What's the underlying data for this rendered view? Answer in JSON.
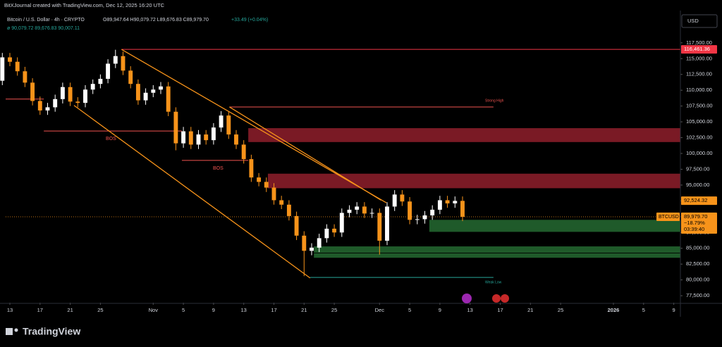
{
  "header": {
    "credit": "BitXJournal created with TradingView.com, Dec 12, 2025 16:20 UTC",
    "logo": "TradingView",
    "currency": "USD"
  },
  "chart_data": {
    "type": "candlestick",
    "title": "Bitcoin / U.S. Dollar · 4h · CRYPTO",
    "ohlc": "O89,947.64 H90,079.72 L89,676.83 C89,979.70",
    "change": "+33.49 (+0.04%)",
    "indicator": "ø 90,079.72 89,676.83 90,007.11",
    "x": [
      -1,
      0,
      1,
      2,
      3,
      4,
      5,
      6,
      7,
      8,
      9,
      10,
      11,
      12,
      13,
      14,
      15,
      16,
      17,
      18,
      19,
      20,
      21,
      22,
      23,
      24,
      25,
      26,
      27,
      28,
      29,
      30,
      31,
      32,
      33,
      34,
      35,
      36,
      37,
      38,
      39,
      40,
      41,
      42,
      43,
      44,
      45,
      46,
      47,
      48,
      49,
      50,
      51,
      52,
      53,
      54,
      55,
      56,
      57,
      58,
      59,
      60
    ],
    "open": [
      111500,
      115200,
      114500,
      113000,
      111200,
      108300,
      106800,
      107300,
      108600,
      110500,
      108200,
      108000,
      110100,
      111000,
      111800,
      114200,
      115400,
      113100,
      111000,
      108400,
      109600,
      110100,
      110600,
      106600,
      101600,
      103500,
      101400,
      103000,
      102100,
      104100,
      106000,
      103000,
      101400,
      99100,
      96200,
      95500,
      94600,
      92600,
      91900,
      90100,
      87000,
      84600,
      85100,
      86600,
      88100,
      87500,
      90600,
      91100,
      91600,
      90500,
      90600,
      86200,
      91600,
      93500,
      92400,
      89500,
      89600,
      90200,
      91100,
      92600,
      92100,
      92500
    ],
    "high": [
      115900,
      115900,
      115200,
      113700,
      111900,
      109000,
      108000,
      109300,
      111200,
      111200,
      108900,
      110800,
      111700,
      112500,
      114900,
      116400,
      116100,
      113800,
      111700,
      110300,
      110800,
      111300,
      111300,
      107300,
      104200,
      104200,
      103700,
      103700,
      104800,
      106700,
      106700,
      103700,
      102100,
      99800,
      96900,
      96200,
      95300,
      93300,
      92600,
      90800,
      87700,
      85800,
      87300,
      88800,
      88800,
      91300,
      91800,
      92300,
      92300,
      91300,
      91300,
      92300,
      94200,
      94200,
      93100,
      90300,
      90900,
      91800,
      93300,
      93300,
      93200,
      93200
    ],
    "low": [
      110800,
      113800,
      112300,
      110500,
      107600,
      106100,
      106100,
      106600,
      107900,
      107500,
      107300,
      107300,
      109400,
      110300,
      111100,
      113500,
      112400,
      110300,
      107700,
      107700,
      108900,
      109400,
      105900,
      100500,
      100900,
      100700,
      100700,
      101400,
      101400,
      103400,
      102300,
      100700,
      98400,
      95500,
      94800,
      93900,
      91900,
      91200,
      89400,
      86300,
      80600,
      83900,
      84400,
      85900,
      86800,
      86800,
      89900,
      90400,
      89800,
      89800,
      84000,
      85500,
      90900,
      91700,
      88800,
      88800,
      88900,
      89500,
      90400,
      91400,
      91400,
      89300
    ],
    "close": [
      115200,
      114500,
      113000,
      111200,
      108300,
      106800,
      107300,
      108600,
      110500,
      108200,
      108000,
      110100,
      111000,
      111800,
      114200,
      115400,
      113100,
      111000,
      108400,
      109600,
      110100,
      110600,
      106600,
      101600,
      103500,
      101400,
      103000,
      102100,
      104100,
      106000,
      103000,
      101400,
      99100,
      96200,
      95500,
      94600,
      92600,
      91900,
      90100,
      87000,
      84600,
      85100,
      86600,
      88100,
      87500,
      90600,
      91100,
      91600,
      90500,
      90600,
      86200,
      91600,
      93500,
      92400,
      89500,
      89600,
      90200,
      91100,
      92600,
      92100,
      92500,
      89980
    ],
    "up_color": "#ffffff",
    "down_color": "#f7931a",
    "xlim": [
      -0.56,
      88.88
    ],
    "xticks": [
      {
        "value": 0,
        "label": "13"
      },
      {
        "value": 4,
        "label": "17"
      },
      {
        "value": 8,
        "label": "21"
      },
      {
        "value": 12,
        "label": "25"
      },
      {
        "value": 19,
        "label": "Nov"
      },
      {
        "value": 23,
        "label": "5"
      },
      {
        "value": 27,
        "label": "9"
      },
      {
        "value": 31,
        "label": "13"
      },
      {
        "value": 35,
        "label": "17"
      },
      {
        "value": 39,
        "label": "21"
      },
      {
        "value": 43,
        "label": "25"
      },
      {
        "value": 49,
        "label": "Dec"
      },
      {
        "value": 53,
        "label": "5"
      },
      {
        "value": 57,
        "label": "9"
      },
      {
        "value": 61,
        "label": "13"
      },
      {
        "value": 65,
        "label": "17"
      },
      {
        "value": 69,
        "label": "21"
      },
      {
        "value": 73,
        "label": "25"
      },
      {
        "value": 80,
        "label": "2026"
      },
      {
        "value": 84,
        "label": "5"
      },
      {
        "value": 88,
        "label": "9"
      }
    ],
    "ylim": [
      76400,
      122600
    ],
    "yticks": [
      {
        "value": 77500,
        "label": "77,500.00"
      },
      {
        "value": 80000,
        "label": "80,000.00"
      },
      {
        "value": 82500,
        "label": "82,500.00"
      },
      {
        "value": 85000,
        "label": "85,000.00"
      },
      {
        "value": 87500,
        "label": "87,500.00"
      },
      {
        "value": 90000,
        "label": "90,000.00"
      },
      {
        "value": 92500,
        "label": "92,500.00"
      },
      {
        "value": 95000,
        "label": "95,000.00"
      },
      {
        "value": 97500,
        "label": "97,500.00"
      },
      {
        "value": 100000,
        "label": "100,000.00"
      },
      {
        "value": 102500,
        "label": "102,500.00"
      },
      {
        "value": 105000,
        "label": "105,000.00"
      },
      {
        "value": 107500,
        "label": "107,500.00"
      },
      {
        "value": 110000,
        "label": "110,000.00"
      },
      {
        "value": 112500,
        "label": "112,500.00"
      },
      {
        "value": 115000,
        "label": "115,000.00"
      },
      {
        "value": 117500,
        "label": "117,500.00"
      }
    ],
    "zones": [
      {
        "from": 31.6,
        "low": 101800,
        "high": 104000,
        "color": "#7a1a25"
      },
      {
        "from": 34.2,
        "low": 94500,
        "high": 96800,
        "color": "#7a1a25"
      },
      {
        "from": 55.6,
        "low": 87600,
        "high": 89500,
        "color": "#1f5a2a"
      },
      {
        "from": 40.3,
        "low": 84300,
        "high": 85300,
        "color": "#1f5a2a"
      },
      {
        "from": 40.3,
        "low": 83500,
        "high": 84200,
        "color": "#1f5a2a"
      }
    ],
    "levels": [
      {
        "value": 116461.36,
        "from": 14.8,
        "to": 88.88,
        "color": "#f23645"
      },
      {
        "value": 107350,
        "from": 29.1,
        "to": 64.1,
        "color": "#ef5350"
      },
      {
        "value": 80400,
        "from": 39.8,
        "to": 64.1,
        "color": "#26a69a"
      },
      {
        "value": 103550,
        "from": 4.5,
        "to": 22.8,
        "color": "#ef5350"
      },
      {
        "value": 98900,
        "from": 22.8,
        "to": 31.6,
        "color": "#ef5350"
      },
      {
        "value": 108600,
        "from": -0.56,
        "to": 4.5,
        "color": "#ef5350"
      }
    ],
    "trendlines": [
      {
        "x": [
          14.8,
          49.9
        ],
        "y": [
          116461.36,
          92200
        ],
        "color": "#f7931a"
      },
      {
        "x": [
          29.1,
          49.2
        ],
        "y": [
          107350,
          92600
        ],
        "color": "#f7931a"
      },
      {
        "x": [
          8.5,
          39.8
        ],
        "y": [
          107600,
          80300
        ],
        "color": "#f7931a"
      }
    ],
    "annotations": [
      "BOS",
      "BOS",
      "Strong High",
      "Weak Low"
    ],
    "price_labels": [
      {
        "value": 116461.36,
        "label": "116,461.36",
        "color": "#f23645",
        "text_color": "#ffffff"
      },
      {
        "value": 92524.32,
        "label": "92,524.32",
        "color": "#f7931a",
        "text_color": "#000000"
      }
    ],
    "last_price": {
      "value": 89979.7,
      "label": "89,979.70",
      "symbol": "BTCUSD",
      "change": "−18.79%",
      "countdown": "03:39:40",
      "color": "#f7931a"
    }
  }
}
